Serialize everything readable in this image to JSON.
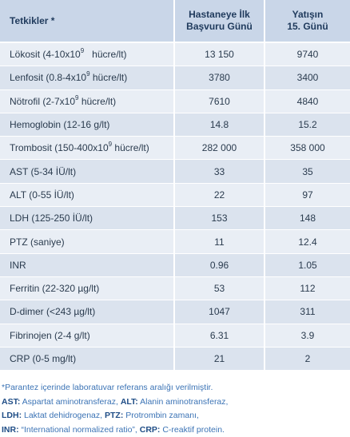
{
  "header": {
    "col1": "Tetkikler *",
    "col2_line1": "Hastaneye İlk",
    "col2_line2": "Başvuru Günü",
    "col3_line1": "Yatışın",
    "col3_line2": "15. Günü"
  },
  "rows": [
    {
      "pre": "Lökosit (4-10x10",
      "sup": "9",
      "post": "   hücre/lt)",
      "v1": "13 150",
      "v2": "9740"
    },
    {
      "pre": "Lenfosit (0.8-4x10",
      "sup": "9",
      "post": " hücre/lt)",
      "v1": "3780",
      "v2": "3400"
    },
    {
      "pre": "Nötrofil (2-7x10",
      "sup": "9",
      "post": " hücre/lt)",
      "v1": "7610",
      "v2": "4840"
    },
    {
      "pre": "Hemoglobin (12-16 g/lt)",
      "sup": "",
      "post": "",
      "v1": "14.8",
      "v2": "15.2"
    },
    {
      "pre": "Trombosit (150-400x10",
      "sup": "9",
      "post": " hücre/lt)",
      "v1": "282 000",
      "v2": "358 000"
    },
    {
      "pre": "AST (5-34 İÜ/lt)",
      "sup": "",
      "post": "",
      "v1": "33",
      "v2": "35"
    },
    {
      "pre": "ALT (0-55 İÜ/lt)",
      "sup": "",
      "post": "",
      "v1": "22",
      "v2": "97"
    },
    {
      "pre": "LDH (125-250 İÜ/lt)",
      "sup": "",
      "post": "",
      "v1": "153",
      "v2": "148"
    },
    {
      "pre": "PTZ (saniye)",
      "sup": "",
      "post": "",
      "v1": "11",
      "v2": "12.4"
    },
    {
      "pre": "INR",
      "sup": "",
      "post": "",
      "v1": "0.96",
      "v2": "1.05"
    },
    {
      "pre": "Ferritin (22-320 µg/lt)",
      "sup": "",
      "post": "",
      "v1": "53",
      "v2": "112"
    },
    {
      "pre": "D-dimer (<243 µg/lt)",
      "sup": "",
      "post": "",
      "v1": "1047",
      "v2": "311"
    },
    {
      "pre": "Fibrinojen (2-4 g/lt)",
      "sup": "",
      "post": "",
      "v1": "6.31",
      "v2": "3.9"
    },
    {
      "pre": "CRP (0-5 mg/lt)",
      "sup": "",
      "post": "",
      "v1": "21",
      "v2": "2"
    }
  ],
  "notes": {
    "line1": "*Parantez içerinde laboratuvar referans aralığı verilmiştir.",
    "ast_abbr": "AST:",
    "ast_text": " Aspartat aminotransferaz, ",
    "alt_abbr": "ALT:",
    "alt_text": " Alanin aminotransferaz,",
    "ldh_abbr": "LDH:",
    "ldh_text": " Laktat dehidrogenaz, ",
    "ptz_abbr": "PTZ:",
    "ptz_text": " Protrombin zamanı,",
    "inr_abbr": "INR:",
    "inr_text": " “International normalized ratio”, ",
    "crp_abbr": "CRP:",
    "crp_text": " C-reaktif protein."
  },
  "colors": {
    "header_bg": "#c9d6e8",
    "row_light": "#e9eef5",
    "row_dark": "#dbe3ee",
    "note_text": "#3b73b5"
  }
}
